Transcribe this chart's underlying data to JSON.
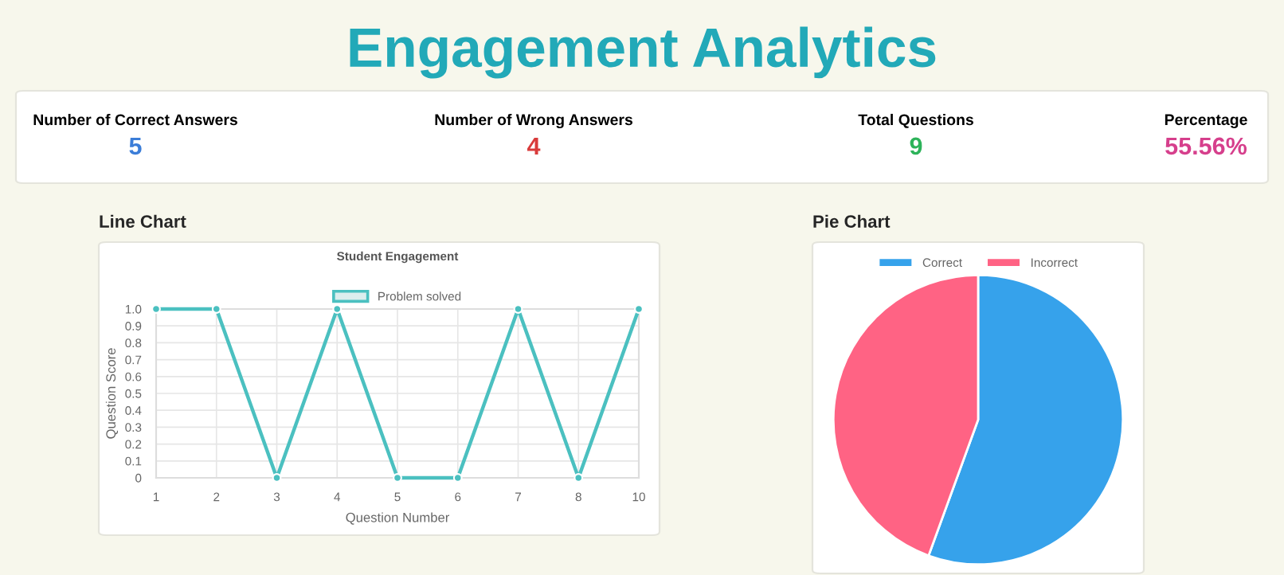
{
  "chart_data": [
    {
      "type": "other",
      "title": "Engagement Analytics",
      "categories": [
        "Number of Correct Answers",
        "Number of Wrong Answers",
        "Total Questions",
        "Percentage"
      ],
      "value_labels": [
        "5",
        "4",
        "9",
        "55.56%"
      ],
      "colors": [
        "#3b7dd8",
        "#d93b3b",
        "#2db35a",
        "#d63f8c"
      ]
    },
    {
      "type": "line",
      "title": "Student Engagement",
      "annotations": [
        "Line Chart"
      ],
      "xlabel": "Question Number",
      "ylabel": "Question Score",
      "categories": [
        "1",
        "2",
        "3",
        "4",
        "5",
        "6",
        "7",
        "8",
        "10"
      ],
      "series": [
        {
          "name": "Problem solved",
          "color": "#4bc0c0",
          "values": [
            1,
            1,
            0,
            1,
            0,
            0,
            1,
            0,
            1
          ]
        }
      ],
      "ylim": [
        0,
        1
      ],
      "yticks": [
        0,
        0.1,
        0.2,
        0.3,
        0.4,
        0.5,
        0.6,
        0.7,
        0.8,
        0.9,
        {
          "value": 1,
          "label": "1.0"
        }
      ],
      "grid": true,
      "legend": "top",
      "marker": "circle",
      "line_style": "solid"
    },
    {
      "type": "pie",
      "annotations": [
        "Pie Chart"
      ],
      "categories": [
        "Correct",
        "Incorrect"
      ],
      "values": [
        55.56,
        44.44
      ],
      "colors": [
        "#36a2eb",
        "#ff6384"
      ],
      "legend": "top"
    }
  ]
}
